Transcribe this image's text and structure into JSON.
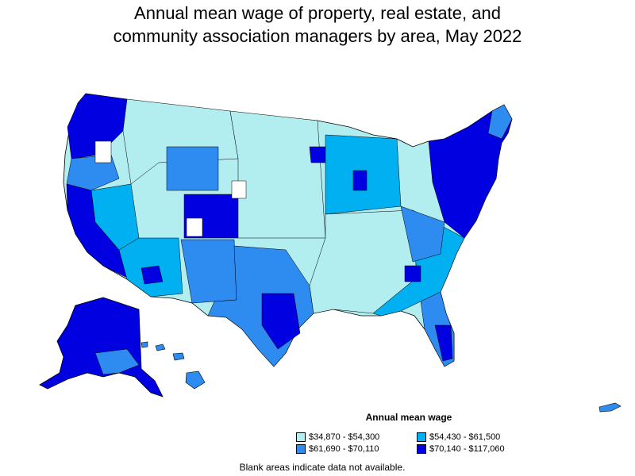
{
  "title": {
    "line1": "Annual mean wage of property, real estate, and",
    "line2": "community association managers by area, May 2022"
  },
  "legend": {
    "title": "Annual mean wage",
    "items": [
      {
        "label": "$34,870 - $54,300",
        "color": "#b2eef0"
      },
      {
        "label": "$54,430 - $61,500",
        "color": "#00b0f0"
      },
      {
        "label": "$61,690 - $70,110",
        "color": "#2e8bf0"
      },
      {
        "label": "$70,140 - $117,060",
        "color": "#0000e0"
      }
    ]
  },
  "footnote": "Blank areas indicate data not available.",
  "colors": {
    "bin1": "#b2eef0",
    "bin2": "#00b0f0",
    "bin3": "#2e8bf0",
    "bin4": "#0000e0",
    "blank": "#ffffff",
    "border": "#000000"
  }
}
